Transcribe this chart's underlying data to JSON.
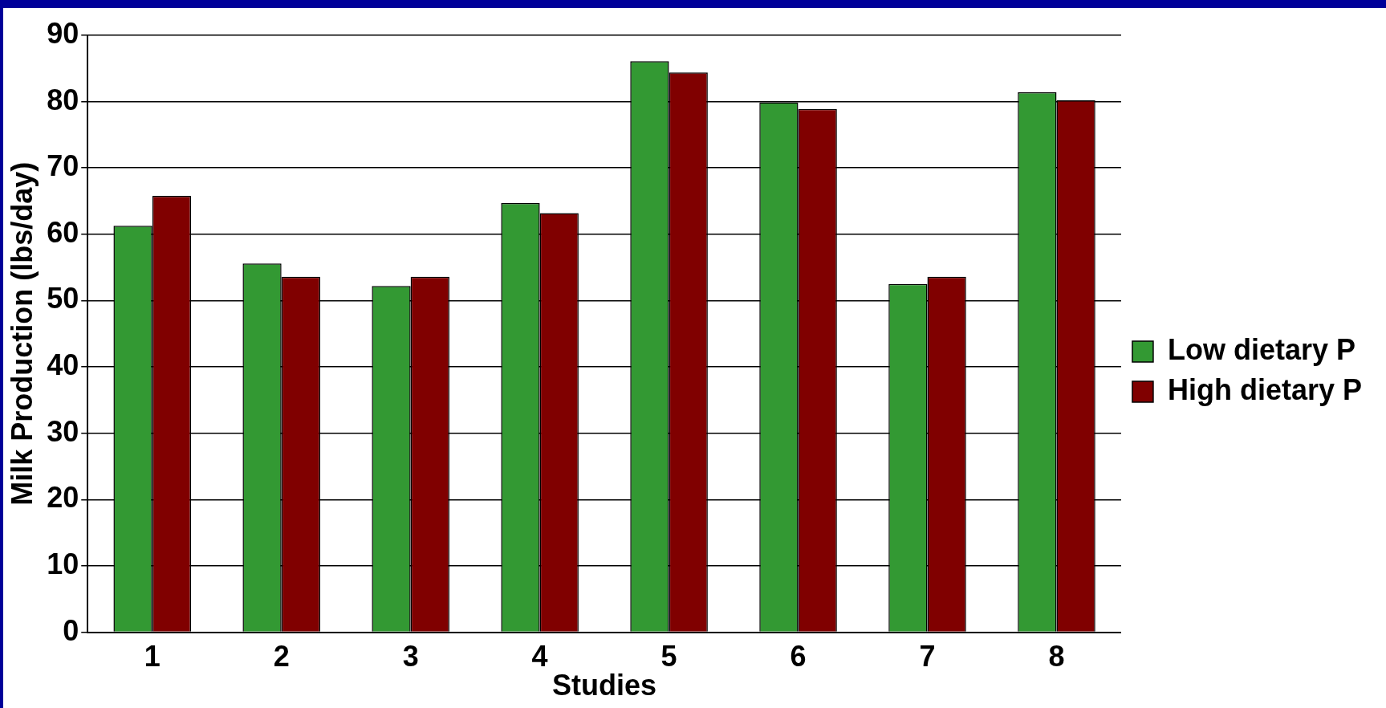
{
  "chart_data": {
    "type": "bar",
    "xlabel": "Studies",
    "ylabel": "Milk Production (lbs/day)",
    "categories": [
      "1",
      "2",
      "3",
      "4",
      "5",
      "6",
      "7",
      "8"
    ],
    "series": [
      {
        "name": "Low dietary P",
        "color": "#339933",
        "values": [
          61.3,
          55.6,
          52.2,
          64.7,
          86.1,
          79.9,
          52.5,
          81.4
        ]
      },
      {
        "name": "High dietary P",
        "color": "#800000",
        "values": [
          65.8,
          53.6,
          53.6,
          63.2,
          84.4,
          78.9,
          53.6,
          80.2
        ]
      }
    ],
    "ylim": [
      0,
      90
    ],
    "yticks": [
      0,
      10,
      20,
      30,
      40,
      50,
      60,
      70,
      80,
      90
    ],
    "grid": "y",
    "legend": "right"
  }
}
